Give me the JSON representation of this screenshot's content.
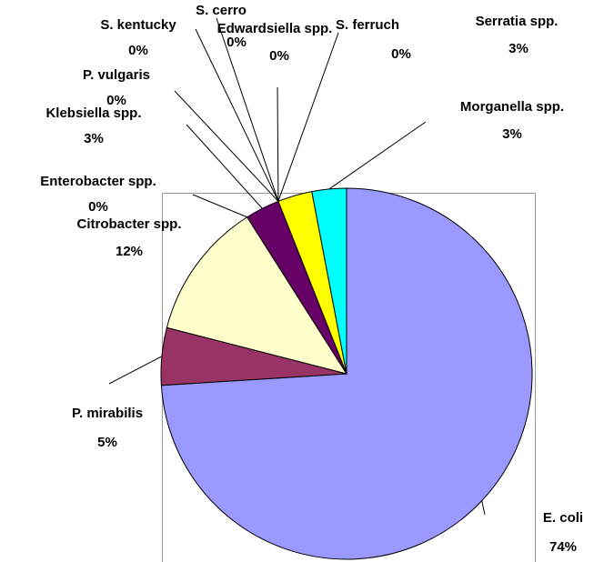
{
  "chart_data": {
    "type": "pie",
    "categories": [
      "E. coli",
      "P. mirabilis",
      "Citrobacter spp.",
      "Enterobacter spp.",
      "Klebsiella spp.",
      "P. vulgaris",
      "S. kentucky",
      "S. cerro",
      "Edwardsiella spp.",
      "S. ferruch",
      "Serratia spp.",
      "Morganella spp."
    ],
    "values": [
      74,
      5,
      12,
      0,
      3,
      0,
      0,
      0,
      0,
      0,
      3,
      3
    ],
    "value_labels": [
      "74%",
      "5%",
      "12%",
      "0%",
      "3%",
      "0%",
      "0%",
      "0%",
      "0%",
      "0%",
      "3%",
      "3%"
    ],
    "colors": [
      "#9999ff",
      "#993366",
      "#ffffcc",
      "#ccffff",
      "#660066",
      "#ff8080",
      "#0066cc",
      "#ccccff",
      "#000080",
      "#ff00ff",
      "#ffff00",
      "#00ffff"
    ]
  }
}
